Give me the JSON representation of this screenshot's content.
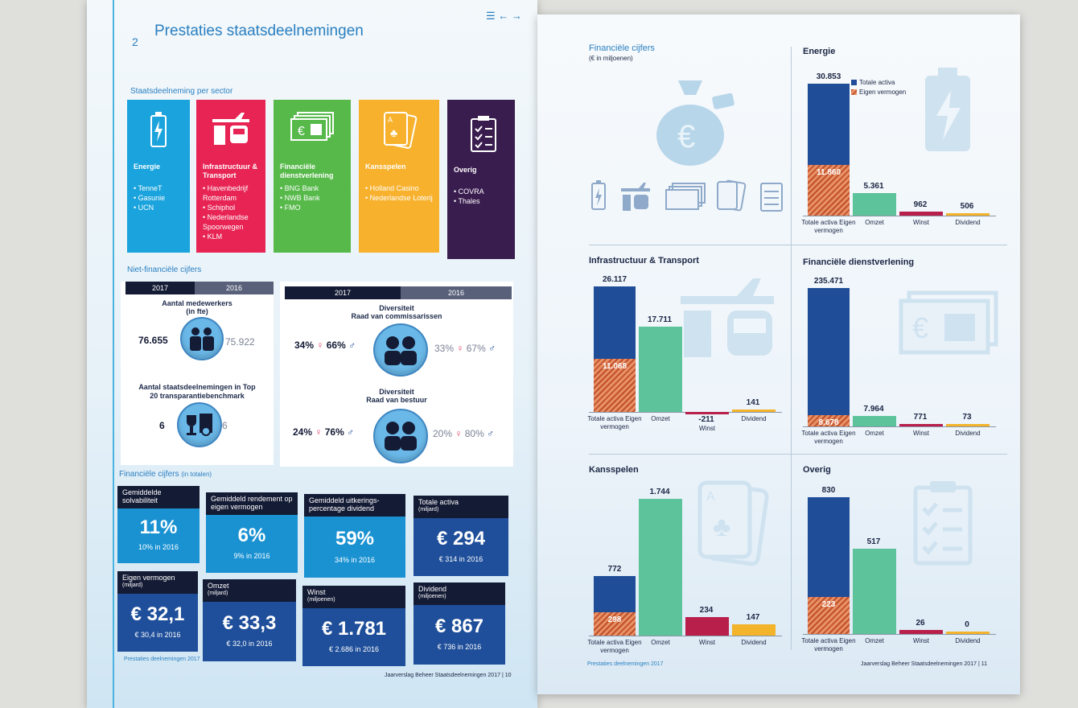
{
  "left_page": {
    "chapter_number": "2",
    "chapter_title": "Prestaties staatsdeelnemingen",
    "nav_icons": [
      "menu-icon",
      "arrow-left-icon",
      "arrow-right-icon"
    ],
    "sector_heading": "Staatsdeelneming per sector",
    "sectors": [
      {
        "title": "Energie",
        "items": [
          "TenneT",
          "Gasunie",
          "UCN"
        ],
        "color": "#1aa3dc",
        "icon": "battery-icon"
      },
      {
        "title": "Infrastructuur & Transport",
        "items": [
          "Havenbedrijf Rotterdam",
          "Schiphol",
          "Nederlandse Spoorwegen",
          "KLM"
        ],
        "color": "#e72454",
        "icon": "plane-train-icon"
      },
      {
        "title": "Financiële dienstverlening",
        "items": [
          "BNG Bank",
          "NWB Bank",
          "FMO"
        ],
        "color": "#56b94a",
        "icon": "money-icon"
      },
      {
        "title": "Kansspelen",
        "items": [
          "Holland Casino",
          "Nederlandse Loterij"
        ],
        "color": "#f7b12d",
        "icon": "cards-icon"
      },
      {
        "title": "Overig",
        "items": [
          "COVRA",
          "Thales"
        ],
        "color": "#3a1d4f",
        "icon": "checklist-icon"
      }
    ],
    "nonfin_heading": "Niet-financiële cijfers",
    "year_2017": "2017",
    "year_2016": "2016",
    "employees": {
      "label": "Aantal medewerkers",
      "unit": "(in fte)",
      "v2017": "76.655",
      "v2016": "75.922"
    },
    "benchmark": {
      "label": "Aantal staatsdeelnemingen in Top 20 transparantiebenchmark",
      "v2017": "6",
      "v2016": "6"
    },
    "div_rvc": {
      "label": "Diversiteit",
      "sub": "Raad van commissarissen",
      "f2017": "34%",
      "m2017": "66%",
      "f2016": "33%",
      "m2016": "67%"
    },
    "div_rvb": {
      "label": "Diversiteit",
      "sub": "Raad van bestuur",
      "f2017": "24%",
      "m2017": "76%",
      "f2016": "20%",
      "m2016": "80%"
    },
    "fin_heading": "Financiële cijfers",
    "fin_heading_sub": "(in totalen)",
    "fin_cards": [
      {
        "head": "Gemiddelde solvabiliteit",
        "unit": "",
        "big": "11%",
        "sub": "10% in 2016",
        "color": "#1a92d2"
      },
      {
        "head": "Gemiddeld rendement op eigen vermogen",
        "unit": "",
        "big": "6%",
        "sub": "9% in 2016",
        "color": "#1a92d2"
      },
      {
        "head": "Gemiddeld uitkerings-percentage dividend",
        "unit": "",
        "big": "59%",
        "sub": "34% in 2016",
        "color": "#1a92d2"
      },
      {
        "head": "Totale activa",
        "unit": "(miljard)",
        "big": "€ 294",
        "sub": "€ 314 in 2016",
        "color": "#1f4f9a"
      },
      {
        "head": "Eigen vermogen",
        "unit": "(miljard)",
        "big": "€ 32,1",
        "sub": "€ 30,4 in 2016",
        "color": "#1f4f9a"
      },
      {
        "head": "Omzet",
        "unit": "(miljard)",
        "big": "€ 33,3",
        "sub": "€ 32,0 in 2016",
        "color": "#1f4f9a"
      },
      {
        "head": "Winst",
        "unit": "(miljoenen)",
        "big": "€ 1.781",
        "sub": "€ 2.686 in 2016",
        "color": "#1f4f9a"
      },
      {
        "head": "Dividend",
        "unit": "(miljoenen)",
        "big": "€ 867",
        "sub": "€ 736 in 2016",
        "color": "#1f4f9a"
      }
    ],
    "footer_left": "Prestaties deelnemingen 2017",
    "footer_right": "Jaarverslag Beheer Staatsdeelnemingen 2017",
    "page_number": "10"
  },
  "right_page": {
    "intro_title": "Financiële cijfers",
    "intro_sub": "(€ in miljoenen)",
    "legend": [
      "Totale activa",
      "Eigen vermogen"
    ],
    "footer_left": "Prestaties deelnemingen 2017",
    "footer_right": "Jaarverslag Beheer Staatsdeelnemingen 2017",
    "page_number": "11",
    "colors": {
      "activa": "#1f4d98",
      "eigen": "#c9532e",
      "omzet": "#5cc39a",
      "winst": "#b81f4b",
      "dividend": "#f3b42c"
    }
  },
  "chart_data": [
    {
      "type": "bar",
      "title": "Energie",
      "categories": [
        "Totale activa Eigen vermogen",
        "Omzet",
        "Winst",
        "Dividend"
      ],
      "series": [
        {
          "name": "Totale activa",
          "values": [
            30853,
            null,
            null,
            null
          ]
        },
        {
          "name": "Eigen vermogen",
          "values": [
            11860,
            null,
            null,
            null
          ]
        },
        {
          "name": "",
          "values": [
            null,
            5361,
            962,
            506
          ]
        }
      ],
      "labels": [
        "30.853",
        "11.860",
        "5.361",
        "962",
        "506"
      ]
    },
    {
      "type": "bar",
      "title": "Infrastructuur & Transport",
      "categories": [
        "Totale activa Eigen vermogen",
        "Omzet",
        "Winst",
        "Dividend"
      ],
      "series": [
        {
          "name": "Totale activa",
          "values": [
            26117,
            null,
            null,
            null
          ]
        },
        {
          "name": "Eigen vermogen",
          "values": [
            11068,
            null,
            null,
            null
          ]
        },
        {
          "name": "",
          "values": [
            null,
            17711,
            -211,
            141
          ]
        }
      ],
      "labels": [
        "26.117",
        "11.068",
        "17.711",
        "-211",
        "141"
      ]
    },
    {
      "type": "bar",
      "title": "Financiële dienstverlening",
      "categories": [
        "Totale activa Eigen vermogen",
        "Omzet",
        "Winst",
        "Dividend"
      ],
      "series": [
        {
          "name": "Totale activa",
          "values": [
            235471,
            null,
            null,
            null
          ]
        },
        {
          "name": "Eigen vermogen",
          "values": [
            8678,
            null,
            null,
            null
          ]
        },
        {
          "name": "",
          "values": [
            null,
            7964,
            771,
            73
          ]
        }
      ],
      "labels": [
        "235.471",
        "8.678",
        "7.964",
        "771",
        "73"
      ]
    },
    {
      "type": "bar",
      "title": "Kansspelen",
      "categories": [
        "Totale activa Eigen vermogen",
        "Omzet",
        "Winst",
        "Dividend"
      ],
      "series": [
        {
          "name": "Totale activa",
          "values": [
            772,
            null,
            null,
            null
          ]
        },
        {
          "name": "Eigen vermogen",
          "values": [
            298,
            null,
            null,
            null
          ]
        },
        {
          "name": "",
          "values": [
            null,
            1744,
            234,
            147
          ]
        }
      ],
      "labels": [
        "772",
        "298",
        "1.744",
        "234",
        "147"
      ]
    },
    {
      "type": "bar",
      "title": "Overig",
      "categories": [
        "Totale activa Eigen vermogen",
        "Omzet",
        "Winst",
        "Dividend"
      ],
      "series": [
        {
          "name": "Totale activa",
          "values": [
            830,
            null,
            null,
            null
          ]
        },
        {
          "name": "Eigen vermogen",
          "values": [
            223,
            null,
            null,
            null
          ]
        },
        {
          "name": "",
          "values": [
            null,
            517,
            26,
            0
          ]
        }
      ],
      "labels": [
        "830",
        "223",
        "517",
        "26",
        "0"
      ]
    }
  ]
}
